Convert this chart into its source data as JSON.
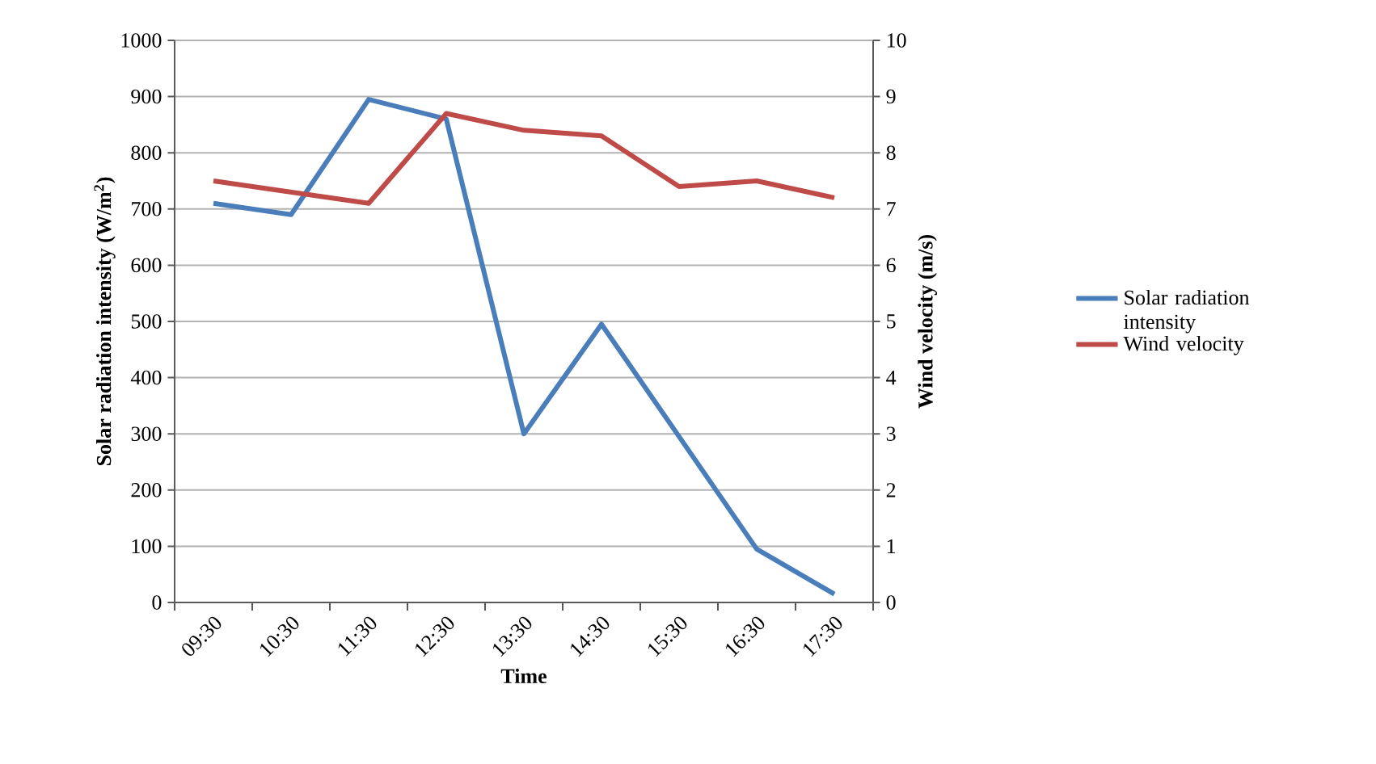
{
  "chart_data": {
    "type": "line",
    "xlabel": "Time",
    "ylabel": "Solar radiation intensity (W/m$^{2}$)",
    "y2label": "Wind velocity (m/s)",
    "categories": [
      "09:30",
      "10:30",
      "11:30",
      "12:30",
      "13:30",
      "14:30",
      "15:30",
      "16:30",
      "17:30"
    ],
    "series": [
      {
        "name": "Solar radiation intensity",
        "color": "#4a7ebb",
        "values": [
          710,
          690,
          895,
          860,
          300,
          495,
          295,
          95,
          15
        ]
      },
      {
        "name": "Wind velocity",
        "color": "#be4b48",
        "axis": "y2",
        "values": [
          7.5,
          7.3,
          7.1,
          8.7,
          8.4,
          8.3,
          7.4,
          7.5,
          7.2
        ]
      }
    ],
    "ylim": [
      0,
      1000
    ],
    "yticks": [
      0,
      100,
      200,
      300,
      400,
      500,
      600,
      700,
      800,
      900,
      1000
    ],
    "y2lim": [
      0,
      10
    ],
    "y2ticks": [
      0,
      1,
      2,
      3,
      4,
      5,
      6,
      7,
      8,
      9,
      10
    ],
    "grid": "y",
    "legend": "right",
    "marker": "none",
    "line_style": "solid"
  }
}
